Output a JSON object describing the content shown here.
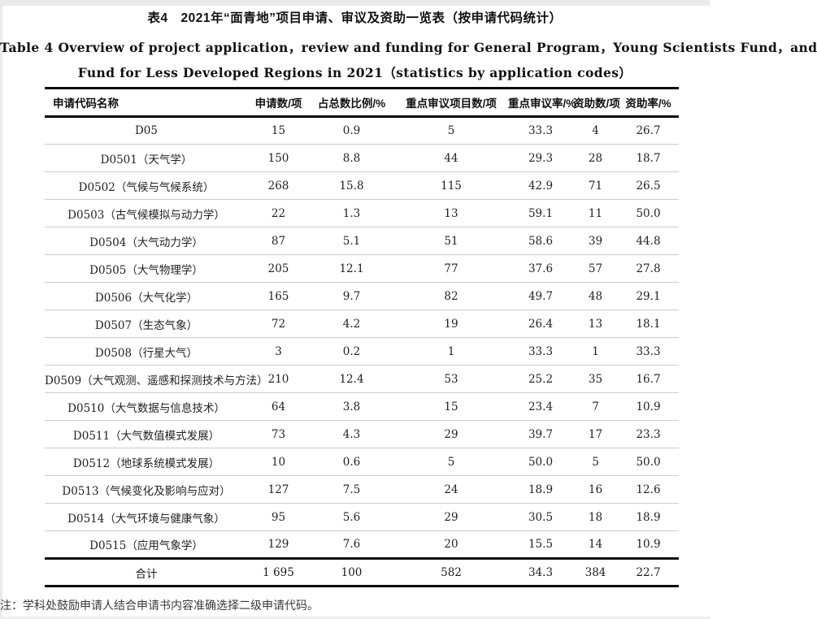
{
  "captions": {
    "zh": "表4　2021年“面青地”项目申请、审议及资助一览表（按申请代码统计）",
    "en_line1": "Table 4  Overview of project application，review and funding for General Program，Young Scientists Fund，and",
    "en_line2": "Fund for Less Developed Regions in 2021（statistics by application codes）"
  },
  "table": {
    "headers": [
      "申请代码名称",
      "申请数/项",
      "占总数比例/%",
      "重点审议项目数/项",
      "重点审议率/%",
      "资助数/项",
      "资助率/%"
    ],
    "rows": [
      [
        "D05",
        "15",
        "0.9",
        "5",
        "33.3",
        "4",
        "26.7"
      ],
      [
        "D0501（天气学）",
        "150",
        "8.8",
        "44",
        "29.3",
        "28",
        "18.7"
      ],
      [
        "D0502（气候与气候系统）",
        "268",
        "15.8",
        "115",
        "42.9",
        "71",
        "26.5"
      ],
      [
        "D0503（古气候模拟与动力学）",
        "22",
        "1.3",
        "13",
        "59.1",
        "11",
        "50.0"
      ],
      [
        "D0504（大气动力学）",
        "87",
        "5.1",
        "51",
        "58.6",
        "39",
        "44.8"
      ],
      [
        "D0505（大气物理学）",
        "205",
        "12.1",
        "77",
        "37.6",
        "57",
        "27.8"
      ],
      [
        "D0506（大气化学）",
        "165",
        "9.7",
        "82",
        "49.7",
        "48",
        "29.1"
      ],
      [
        "D0507（生态气象）",
        "72",
        "4.2",
        "19",
        "26.4",
        "13",
        "18.1"
      ],
      [
        "D0508（行星大气）",
        "3",
        "0.2",
        "1",
        "33.3",
        "1",
        "33.3"
      ],
      [
        "D0509（大气观测、遥感和探测技术与方法）",
        "210",
        "12.4",
        "53",
        "25.2",
        "35",
        "16.7"
      ],
      [
        "D0510（大气数据与信息技术）",
        "64",
        "3.8",
        "15",
        "23.4",
        "7",
        "10.9"
      ],
      [
        "D0511（大气数值模式发展）",
        "73",
        "4.3",
        "29",
        "39.7",
        "17",
        "23.3"
      ],
      [
        "D0512（地球系统模式发展）",
        "10",
        "0.6",
        "5",
        "50.0",
        "5",
        "50.0"
      ],
      [
        "D0513（气候变化及影响与应对）",
        "127",
        "7.5",
        "24",
        "18.9",
        "16",
        "12.6"
      ],
      [
        "D0514（大气环境与健康气象）",
        "95",
        "5.6",
        "29",
        "30.5",
        "18",
        "18.9"
      ],
      [
        "D0515（应用气象学）",
        "129",
        "7.6",
        "20",
        "15.5",
        "14",
        "10.9"
      ]
    ],
    "total_row": [
      "合计",
      "1 695",
      "100",
      "582",
      "34.3",
      "384",
      "22.7"
    ]
  },
  "footnote": "注：学科处鼓励申请人结合申请书内容准确选择二级申请代码。",
  "colors": {
    "thick_rule": "#0a0a0a",
    "row_separator": "#cbcbcb",
    "text": "#1c1c1c",
    "page_edge": "#ebebeb"
  }
}
